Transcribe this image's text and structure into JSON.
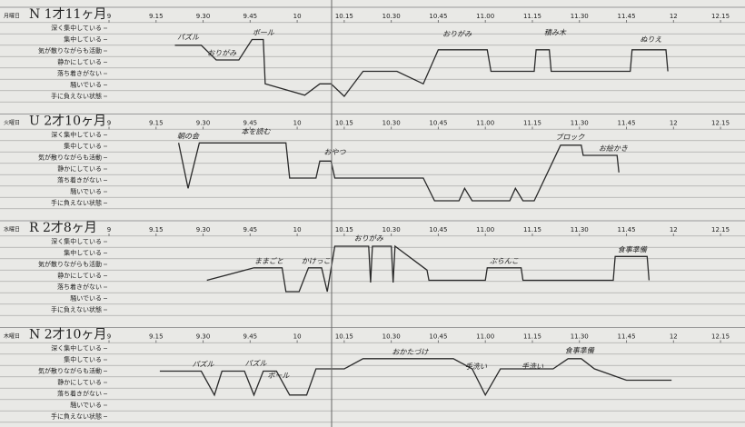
{
  "chart_data": [
    {
      "type": "line",
      "subtitle": "月曜日",
      "title": "N 1才11ヶ月",
      "color": "#2a2a2a",
      "xlim": [
        9,
        12.38
      ],
      "ylim": [
        0.5,
        7.5
      ],
      "xticks": [
        9,
        {
          "value": 9.25,
          "label": "9.15"
        },
        {
          "value": 9.5,
          "label": "9.30"
        },
        {
          "value": 9.75,
          "label": "9.45"
        },
        10,
        {
          "value": 10.25,
          "label": "10.15"
        },
        {
          "value": 10.5,
          "label": "10.30"
        },
        {
          "value": 10.75,
          "label": "10.45"
        },
        {
          "value": 11,
          "label": "11.00"
        },
        {
          "value": 11.25,
          "label": "11.15"
        },
        {
          "value": 11.5,
          "label": "11.30"
        },
        {
          "value": 11.75,
          "label": "11.45"
        },
        12,
        {
          "value": 12.25,
          "label": "12.15"
        }
      ],
      "yticks": [
        {
          "value": 7,
          "label": "深く集中している"
        },
        {
          "value": 6,
          "label": "集中している"
        },
        {
          "value": 5,
          "label": "気が散りながらも活動"
        },
        {
          "value": 4,
          "label": "静かにしている"
        },
        {
          "value": 3,
          "label": "落ち着きがない"
        },
        {
          "value": 2,
          "label": "騒いでいる"
        },
        {
          "value": 1,
          "label": "手に負えない状態"
        }
      ],
      "x": [
        9.35,
        9.49,
        9.57,
        9.69,
        9.76,
        9.82,
        9.83,
        10.04,
        10.12,
        10.18,
        10.25,
        10.35,
        10.53,
        10.67,
        10.75,
        11.01,
        11.03,
        11.26,
        11.27,
        11.34,
        11.35,
        11.77,
        11.78,
        11.96,
        11.97
      ],
      "values": [
        5.5,
        5.5,
        4.2,
        4.2,
        6,
        6,
        2.1,
        1.1,
        2.1,
        2.1,
        1,
        3.2,
        3.2,
        2.1,
        5.1,
        5.1,
        3.2,
        3.2,
        5.1,
        5.1,
        3.2,
        3.2,
        5.1,
        5.1,
        3.2
      ],
      "annotations": [
        {
          "text": "パズル",
          "x": 9.42,
          "y": 6.2
        },
        {
          "text": "おりがみ",
          "x": 9.6,
          "y": 4.8
        },
        {
          "text": "ボール",
          "x": 9.82,
          "y": 6.6
        },
        {
          "text": "おりがみ",
          "x": 10.85,
          "y": 6.5
        },
        {
          "text": "積み木",
          "x": 11.37,
          "y": 6.6
        },
        {
          "text": "ぬりえ",
          "x": 11.88,
          "y": 6
        }
      ]
    },
    {
      "type": "line",
      "subtitle": "火曜日",
      "title": "U 2才10ヶ月",
      "color": "#2a2a2a",
      "xlim": [
        9,
        12.38
      ],
      "ylim": [
        0.5,
        7.5
      ],
      "xticks": [
        9,
        {
          "value": 9.25,
          "label": "9.15"
        },
        {
          "value": 9.5,
          "label": "9.30"
        },
        {
          "value": 9.75,
          "label": "9.45"
        },
        10,
        {
          "value": 10.25,
          "label": "10.15"
        },
        {
          "value": 10.5,
          "label": "10.30"
        },
        {
          "value": 10.75,
          "label": "10.45"
        },
        {
          "value": 11,
          "label": "11.00"
        },
        {
          "value": 11.25,
          "label": "11.15"
        },
        {
          "value": 11.5,
          "label": "11.30"
        },
        {
          "value": 11.75,
          "label": "11.45"
        },
        12,
        {
          "value": 12.25,
          "label": "12.15"
        }
      ],
      "yticks": [
        {
          "value": 7,
          "label": "深く集中している"
        },
        {
          "value": 6,
          "label": "集中している"
        },
        {
          "value": 5,
          "label": "気が散りながらも活動"
        },
        {
          "value": 4,
          "label": "静かにしている"
        },
        {
          "value": 3,
          "label": "落ち着きがない"
        },
        {
          "value": 2,
          "label": "騒いでいる"
        },
        {
          "value": 1,
          "label": "手に負えない状態"
        }
      ],
      "x": [
        9.37,
        9.42,
        9.48,
        9.94,
        9.96,
        10.1,
        10.12,
        10.18,
        10.2,
        10.67,
        10.73,
        10.86,
        10.89,
        10.93,
        11.13,
        11.16,
        11.2,
        11.26,
        11.4,
        11.51,
        11.52,
        11.7,
        11.71
      ],
      "values": [
        6.3,
        2.3,
        6.3,
        6.3,
        3.2,
        3.2,
        4.7,
        4.7,
        3.2,
        3.2,
        1.2,
        1.2,
        2.3,
        1.2,
        1.2,
        2.3,
        1.2,
        1.2,
        6.1,
        6.1,
        5.2,
        5.2,
        3.7
      ],
      "annotations": [
        {
          "text": "朝の会",
          "x": 9.42,
          "y": 6.9
        },
        {
          "text": "本を読む",
          "x": 9.78,
          "y": 7.3
        },
        {
          "text": "おやつ",
          "x": 10.2,
          "y": 5.5
        },
        {
          "text": "ブロック",
          "x": 11.45,
          "y": 6.8
        },
        {
          "text": "お絵かき",
          "x": 11.68,
          "y": 5.8
        }
      ]
    },
    {
      "type": "line",
      "subtitle": "水曜日",
      "title": "R 2才8ヶ月",
      "color": "#2a2a2a",
      "xlim": [
        9,
        12.38
      ],
      "ylim": [
        0.5,
        7.5
      ],
      "xticks": [
        9,
        {
          "value": 9.25,
          "label": "9.15"
        },
        {
          "value": 9.5,
          "label": "9.30"
        },
        {
          "value": 9.75,
          "label": "9.45"
        },
        10,
        {
          "value": 10.25,
          "label": "10.15"
        },
        {
          "value": 10.5,
          "label": "10.30"
        },
        {
          "value": 10.75,
          "label": "10.45"
        },
        {
          "value": 11,
          "label": "11.00"
        },
        {
          "value": 11.25,
          "label": "11.15"
        },
        {
          "value": 11.5,
          "label": "11.30"
        },
        {
          "value": 11.75,
          "label": "11.45"
        },
        12,
        {
          "value": 12.25,
          "label": "12.15"
        }
      ],
      "yticks": [
        {
          "value": 7,
          "label": "深く集中している"
        },
        {
          "value": 6,
          "label": "集中している"
        },
        {
          "value": 5,
          "label": "気が散りながらも活動"
        },
        {
          "value": 4,
          "label": "静かにしている"
        },
        {
          "value": 3,
          "label": "落ち着きがない"
        },
        {
          "value": 2,
          "label": "騒いでいる"
        },
        {
          "value": 1,
          "label": "手に負えない状態"
        }
      ],
      "x": [
        9.52,
        9.77,
        9.92,
        9.94,
        10.01,
        10.06,
        10.13,
        10.16,
        10.2,
        10.38,
        10.39,
        10.4,
        10.5,
        10.51,
        10.52,
        10.69,
        10.7,
        11,
        11.01,
        11.19,
        11.2,
        11.68,
        11.69,
        11.86,
        11.87
      ],
      "values": [
        3.6,
        4.7,
        4.7,
        2.6,
        2.6,
        4.7,
        4.7,
        2.6,
        6.6,
        6.6,
        3.4,
        6.6,
        6.6,
        3.4,
        6.6,
        4.5,
        3.6,
        3.6,
        4.7,
        4.7,
        3.6,
        3.6,
        5.7,
        5.7,
        3.6
      ],
      "annotations": [
        {
          "text": "ままごと",
          "x": 9.85,
          "y": 5.3
        },
        {
          "text": "かけっこ",
          "x": 10.1,
          "y": 5.3
        },
        {
          "text": "おりがみ",
          "x": 10.38,
          "y": 7.3
        },
        {
          "text": "ぶらんこ",
          "x": 11.1,
          "y": 5.3
        },
        {
          "text": "食事準備",
          "x": 11.78,
          "y": 6.3
        }
      ]
    },
    {
      "type": "line",
      "subtitle": "木曜日",
      "title": "N 2才10ヶ月",
      "color": "#2a2a2a",
      "xlim": [
        9,
        12.38
      ],
      "ylim": [
        0.5,
        7.5
      ],
      "xticks": [
        9,
        {
          "value": 9.25,
          "label": "9.15"
        },
        {
          "value": 9.5,
          "label": "9.30"
        },
        {
          "value": 9.75,
          "label": "9.45"
        },
        10,
        {
          "value": 10.25,
          "label": "10.15"
        },
        {
          "value": 10.5,
          "label": "10.30"
        },
        {
          "value": 10.75,
          "label": "10.45"
        },
        {
          "value": 11,
          "label": "11.00"
        },
        {
          "value": 11.25,
          "label": "11.15"
        },
        {
          "value": 11.5,
          "label": "11.30"
        },
        {
          "value": 11.75,
          "label": "11.45"
        },
        12,
        {
          "value": 12.25,
          "label": "12.15"
        }
      ],
      "yticks": [
        {
          "value": 7,
          "label": "深く集中している"
        },
        {
          "value": 6,
          "label": "集中している"
        },
        {
          "value": 5,
          "label": "気が散りながらも活動"
        },
        {
          "value": 4,
          "label": "静かにしている"
        },
        {
          "value": 3,
          "label": "落ち着きがない"
        },
        {
          "value": 2,
          "label": "騒いでいる"
        },
        {
          "value": 1,
          "label": "手に負えない状態"
        }
      ],
      "x": [
        9.27,
        9.49,
        9.56,
        9.6,
        9.72,
        9.77,
        9.82,
        9.89,
        9.96,
        10.05,
        10.1,
        10.25,
        10.35,
        10.83,
        10.93,
        11,
        11.08,
        11.36,
        11.44,
        11.51,
        11.58,
        11.75,
        11.99
      ],
      "values": [
        5,
        5,
        2.9,
        5,
        5,
        2.9,
        5,
        5,
        2.9,
        2.9,
        5.2,
        5.2,
        6.1,
        6.1,
        5.2,
        2.9,
        5.2,
        5.2,
        6.1,
        6.1,
        5.2,
        4.2,
        4.2
      ],
      "annotations": [
        {
          "text": "パズル",
          "x": 9.5,
          "y": 5.6
        },
        {
          "text": "パズル",
          "x": 9.78,
          "y": 5.7
        },
        {
          "text": "ボール",
          "x": 9.9,
          "y": 4.6
        },
        {
          "text": "おかたづけ",
          "x": 10.6,
          "y": 6.7
        },
        {
          "text": "手洗い",
          "x": 10.95,
          "y": 5.4
        },
        {
          "text": "手洗い",
          "x": 11.25,
          "y": 5.4
        },
        {
          "text": "食事準備",
          "x": 11.5,
          "y": 6.8
        }
      ]
    }
  ]
}
